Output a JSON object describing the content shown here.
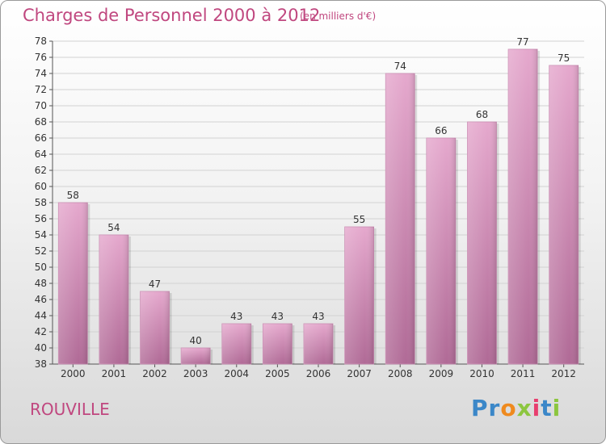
{
  "header": {
    "title": "Charges de Personnel 2000 à 2012",
    "subtitle": "(en milliers d'€)"
  },
  "footer": {
    "commune": "ROUVILLE",
    "brand": "Proxiti"
  },
  "colors": {
    "accent": "#c0477f",
    "bar_top": "#e5a8cd",
    "bar_bottom": "#b06a96",
    "brand_colors": [
      "#3b87c8",
      "#3b87c8",
      "#ef8a1e",
      "#8cc63f",
      "#e83f6f",
      "#3b87c8",
      "#8cc63f"
    ]
  },
  "chart_data": {
    "type": "bar",
    "title": "Charges de Personnel 2000 à 2012",
    "subtitle": "(en milliers d'€)",
    "xlabel": "",
    "ylabel": "",
    "categories": [
      "2000",
      "2001",
      "2002",
      "2003",
      "2004",
      "2005",
      "2006",
      "2007",
      "2008",
      "2009",
      "2010",
      "2011",
      "2012"
    ],
    "values": [
      58,
      54,
      47,
      40,
      43,
      43,
      43,
      55,
      74,
      66,
      68,
      77,
      75
    ],
    "ylim": [
      38,
      78
    ],
    "yticks": [
      38,
      40,
      42,
      44,
      46,
      48,
      50,
      52,
      54,
      56,
      58,
      60,
      62,
      64,
      66,
      68,
      70,
      72,
      74,
      76,
      78
    ],
    "grid": true,
    "data_labels": true
  }
}
